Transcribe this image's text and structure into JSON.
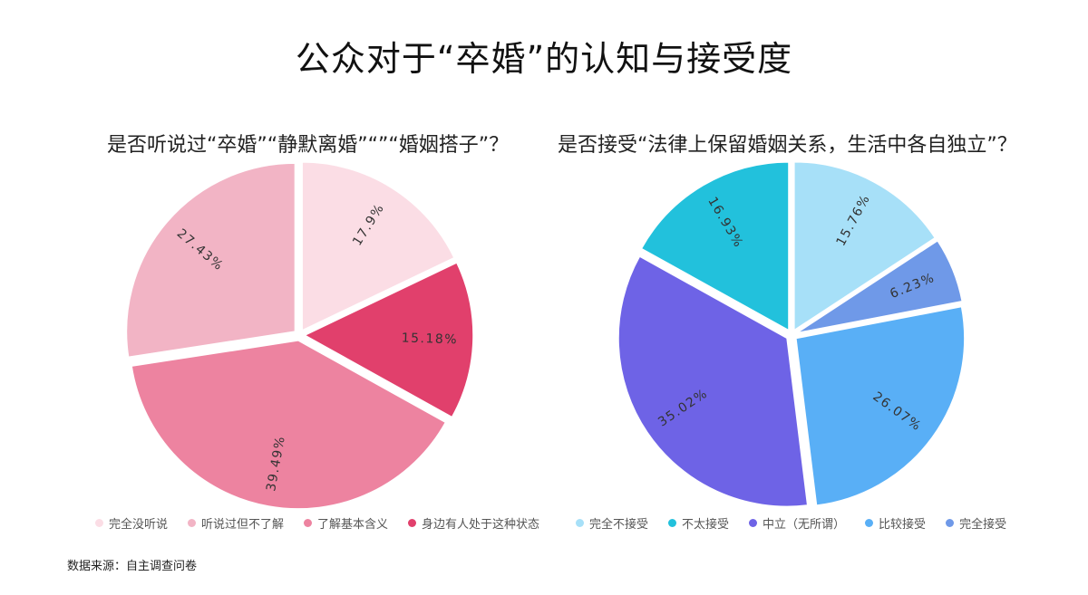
{
  "title": "公众对于“卒婚”的认知与接受度",
  "source": "数据来源：自主调查问卷",
  "chart_data": [
    {
      "type": "pie",
      "title": "是否听说过“卒婚”“静默离婚”“”“婚姻搭子”？",
      "categories": [
        "完全没听说",
        "听说过但不了解",
        "了解基本含义",
        "身边有人处于这种状态"
      ],
      "values": [
        17.9,
        27.43,
        39.49,
        15.18
      ],
      "labels": [
        "17.9%",
        "27.43%",
        "39.49%",
        "15.18%"
      ],
      "colors": [
        "#fbdde5",
        "#f2b4c5",
        "#ed83a0",
        "#e1406c"
      ],
      "legend_colors": [
        "#fbdde5",
        "#f2b4c5",
        "#ed83a0",
        "#e1406c"
      ],
      "slice_order": [
        0,
        3,
        2,
        1
      ],
      "legend": "bottom"
    },
    {
      "type": "pie",
      "title": "是否接受“法律上保留婚姻关系，生活中各自独立”？",
      "categories": [
        "完全不接受",
        "不太接受",
        "中立（无所谓）",
        "比较接受",
        "完全接受"
      ],
      "values": [
        15.76,
        16.93,
        35.02,
        26.07,
        6.23
      ],
      "labels": [
        "15.76%",
        "16.93%",
        "35.02%",
        "26.07%",
        "6.23%"
      ],
      "colors": [
        "#a7e0f8",
        "#22c1dc",
        "#6e63e6",
        "#59aff6",
        "#6f99e8"
      ],
      "legend_colors": [
        "#a7e0f8",
        "#22c1dc",
        "#6e63e6",
        "#59aff6",
        "#6f99e8"
      ],
      "slice_order": [
        0,
        4,
        3,
        2,
        1
      ],
      "legend": "bottom"
    }
  ]
}
